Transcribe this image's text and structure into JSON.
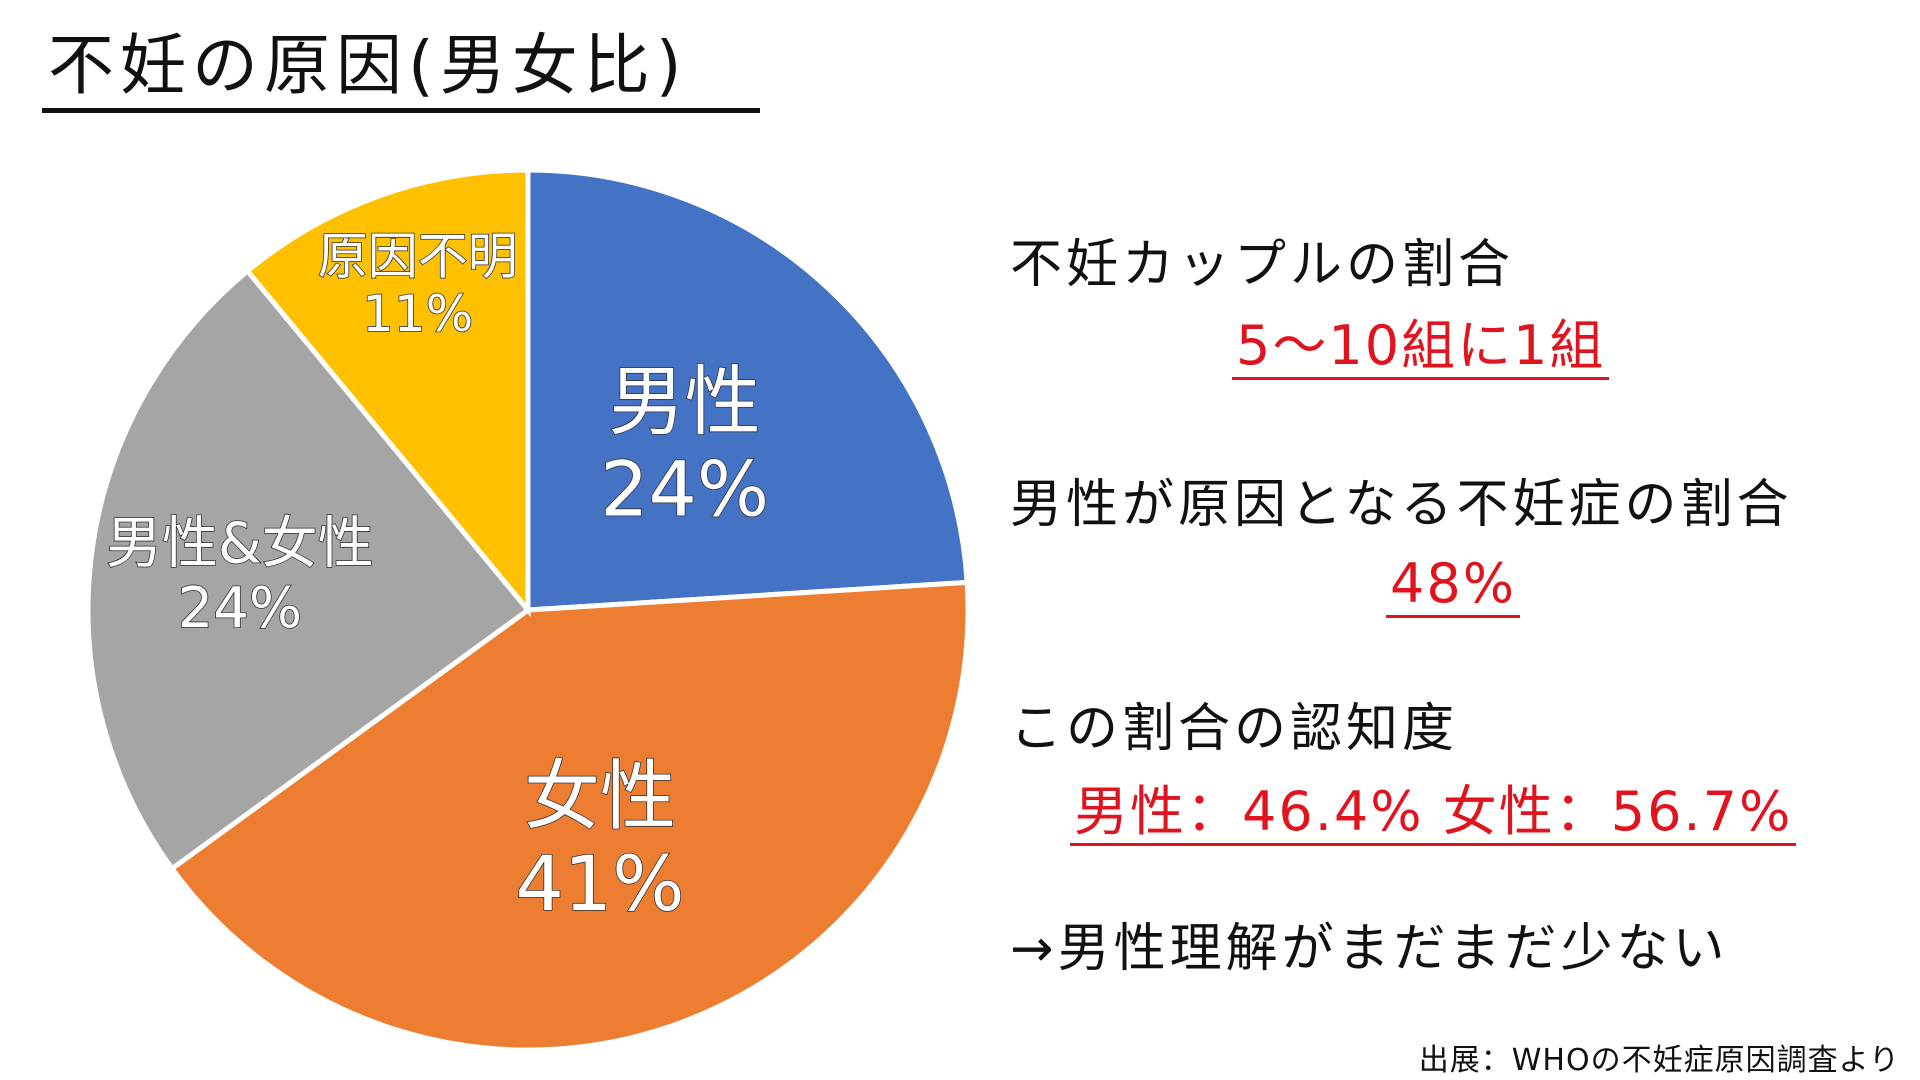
{
  "title": "不妊の原因(男女比)",
  "chart_data": {
    "type": "pie",
    "title": "不妊の原因(男女比)",
    "slices": [
      {
        "name": "男性",
        "value": 24,
        "label": "24%",
        "color": "#4472c4"
      },
      {
        "name": "女性",
        "value": 41,
        "label": "41%",
        "color": "#ed7d31"
      },
      {
        "name": "男性&女性",
        "value": 24,
        "label": "24%",
        "color": "#a5a5a5"
      },
      {
        "name": "原因不明",
        "value": 11,
        "label": "11%",
        "color": "#ffc000"
      }
    ]
  },
  "info": {
    "couple_ratio_label": "不妊カップルの割合",
    "couple_ratio_value": "5〜10組に1組",
    "male_cause_label": "男性が原因となる不妊症の割合",
    "male_cause_value": "48%",
    "awareness_label": "この割合の認知度",
    "awareness_value": "男性：46.4% 女性：56.7%",
    "conclusion": "→男性理解がまだまだ少ない"
  },
  "source": "出展：WHOの不妊症原因調査より",
  "colors": {
    "accent_red": "#e0141e",
    "text": "#111111"
  }
}
